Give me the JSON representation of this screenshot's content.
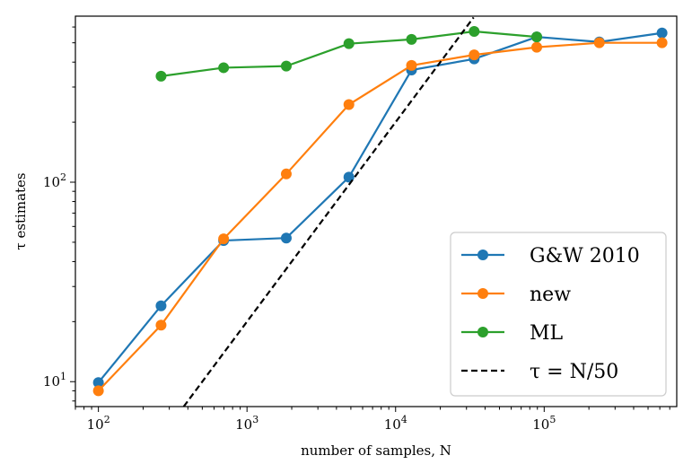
{
  "chart_data": {
    "type": "line",
    "title": "",
    "xlabel": "number of samples, N",
    "ylabel": "τ estimates",
    "xscale": "log",
    "yscale": "log",
    "xlim": [
      70,
      780000
    ],
    "ylim": [
      7.5,
      680
    ],
    "grid": false,
    "legend_placement": "lower-right",
    "x_major_ticks": [
      {
        "value": 100,
        "base": "10",
        "exp": "2"
      },
      {
        "value": 1000,
        "base": "10",
        "exp": "3"
      },
      {
        "value": 10000,
        "base": "10",
        "exp": "4"
      },
      {
        "value": 100000,
        "base": "10",
        "exp": "5"
      }
    ],
    "y_major_ticks": [
      {
        "value": 10,
        "base": "10",
        "exp": "1"
      },
      {
        "value": 100,
        "base": "10",
        "exp": "2"
      }
    ],
    "series": [
      {
        "name": "G&W 2010",
        "color": "#1f77b4",
        "marker": "circle",
        "x": [
          100,
          264,
          696,
          1838,
          4850,
          12800,
          33800,
          89100,
          235000,
          621000
        ],
        "y": [
          9.9,
          24,
          51,
          52.5,
          106,
          365,
          415,
          535,
          505,
          560
        ]
      },
      {
        "name": "new",
        "color": "#ff7f0e",
        "marker": "circle",
        "x": [
          100,
          264,
          696,
          1838,
          4850,
          12800,
          33800,
          89100,
          235000,
          621000
        ],
        "y": [
          9.0,
          19.2,
          52,
          110,
          245,
          385,
          435,
          475,
          500,
          500
        ]
      },
      {
        "name": "ML",
        "color": "#2ca02c",
        "marker": "circle",
        "x": [
          264,
          696,
          1838,
          4850,
          12800,
          33800,
          89100
        ],
        "y": [
          340,
          375,
          382,
          495,
          520,
          570,
          535
        ]
      },
      {
        "name": "τ = N/50",
        "color": "#000000",
        "style": "dashed",
        "x": [
          375,
          33500
        ],
        "y": [
          7.5,
          670
        ]
      }
    ]
  }
}
